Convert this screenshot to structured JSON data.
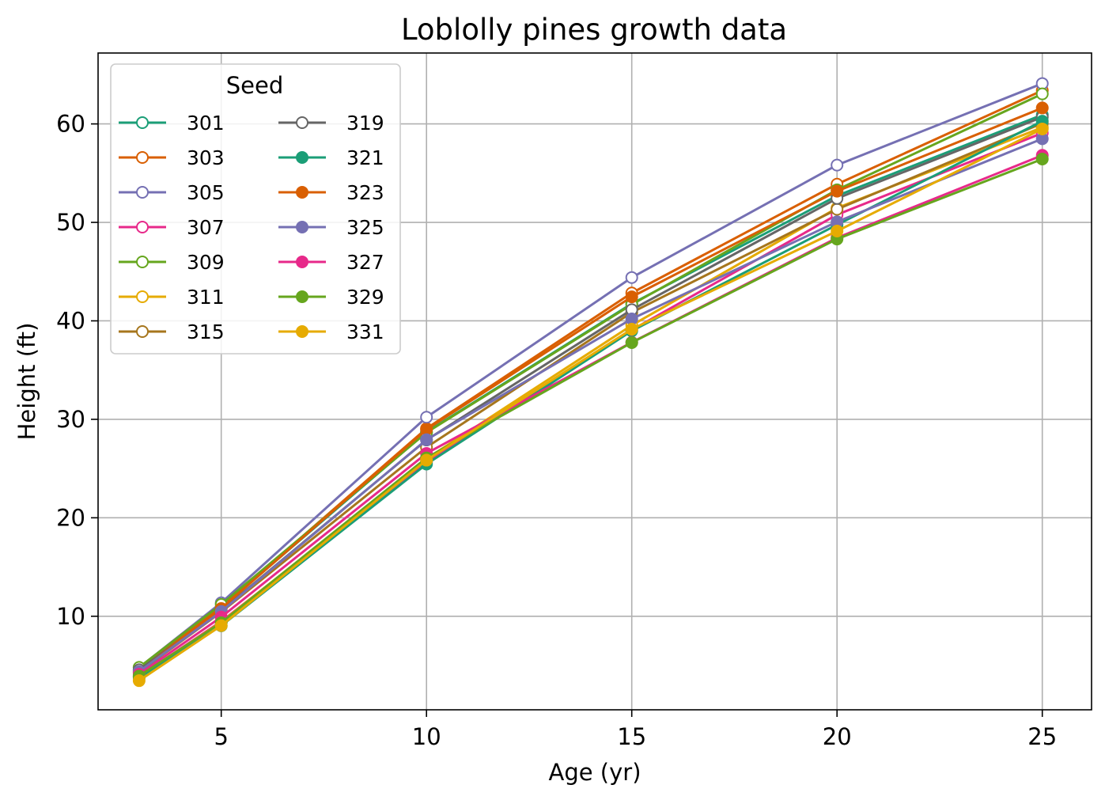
{
  "chart_data": {
    "type": "line",
    "title": "Loblolly pines growth data",
    "xlabel": "Age (yr)",
    "ylabel": "Height (ft)",
    "xlim": [
      2,
      26.2
    ],
    "ylim": [
      0.5,
      67.2
    ],
    "xticks": [
      5,
      10,
      15,
      20,
      25
    ],
    "yticks": [
      10,
      20,
      30,
      40,
      50,
      60
    ],
    "grid": true,
    "legend": {
      "title": "Seed",
      "placement": "upper-left",
      "columns": 2
    },
    "x": [
      3,
      5,
      10,
      15,
      20,
      25
    ],
    "series": [
      {
        "name": "301",
        "color": "#1b9e77",
        "filled": false,
        "values": [
          4.51,
          10.89,
          28.72,
          41.74,
          52.7,
          60.92
        ]
      },
      {
        "name": "303",
        "color": "#d95f02",
        "filled": false,
        "values": [
          4.55,
          10.92,
          29.07,
          42.83,
          53.88,
          63.39
        ]
      },
      {
        "name": "305",
        "color": "#7570b3",
        "filled": false,
        "values": [
          4.79,
          11.37,
          30.21,
          44.4,
          55.82,
          64.1
        ]
      },
      {
        "name": "307",
        "color": "#e7298a",
        "filled": false,
        "values": [
          3.91,
          9.48,
          25.66,
          39.07,
          50.78,
          59.07
        ]
      },
      {
        "name": "309",
        "color": "#66a61e",
        "filled": false,
        "values": [
          4.81,
          11.2,
          28.66,
          41.66,
          53.31,
          63.05
        ]
      },
      {
        "name": "311",
        "color": "#e6ab02",
        "filled": false,
        "values": [
          3.88,
          9.4,
          25.99,
          39.55,
          51.46,
          59.64
        ]
      },
      {
        "name": "315",
        "color": "#a6761d",
        "filled": false,
        "values": [
          4.32,
          10.43,
          27.16,
          40.85,
          51.33,
          60.07
        ]
      },
      {
        "name": "319",
        "color": "#666666",
        "filled": false,
        "values": [
          4.57,
          10.57,
          27.9,
          41.13,
          52.43,
          60.69
        ]
      },
      {
        "name": "321",
        "color": "#1b9e77",
        "filled": true,
        "values": [
          3.77,
          9.03,
          25.45,
          38.98,
          49.76,
          60.28
        ]
      },
      {
        "name": "323",
        "color": "#d95f02",
        "filled": true,
        "values": [
          4.33,
          10.79,
          28.97,
          42.44,
          53.17,
          61.62
        ]
      },
      {
        "name": "325",
        "color": "#7570b3",
        "filled": true,
        "values": [
          4.38,
          10.48,
          27.93,
          40.2,
          50.06,
          58.49
        ]
      },
      {
        "name": "327",
        "color": "#e7298a",
        "filled": true,
        "values": [
          4.12,
          9.92,
          26.54,
          37.82,
          48.43,
          56.81
        ]
      },
      {
        "name": "329",
        "color": "#66a61e",
        "filled": true,
        "values": [
          3.93,
          9.34,
          26.08,
          37.79,
          48.31,
          56.43
        ]
      },
      {
        "name": "331",
        "color": "#e6ab02",
        "filled": true,
        "values": [
          3.46,
          9.05,
          25.85,
          39.15,
          49.12,
          59.49
        ]
      }
    ]
  }
}
